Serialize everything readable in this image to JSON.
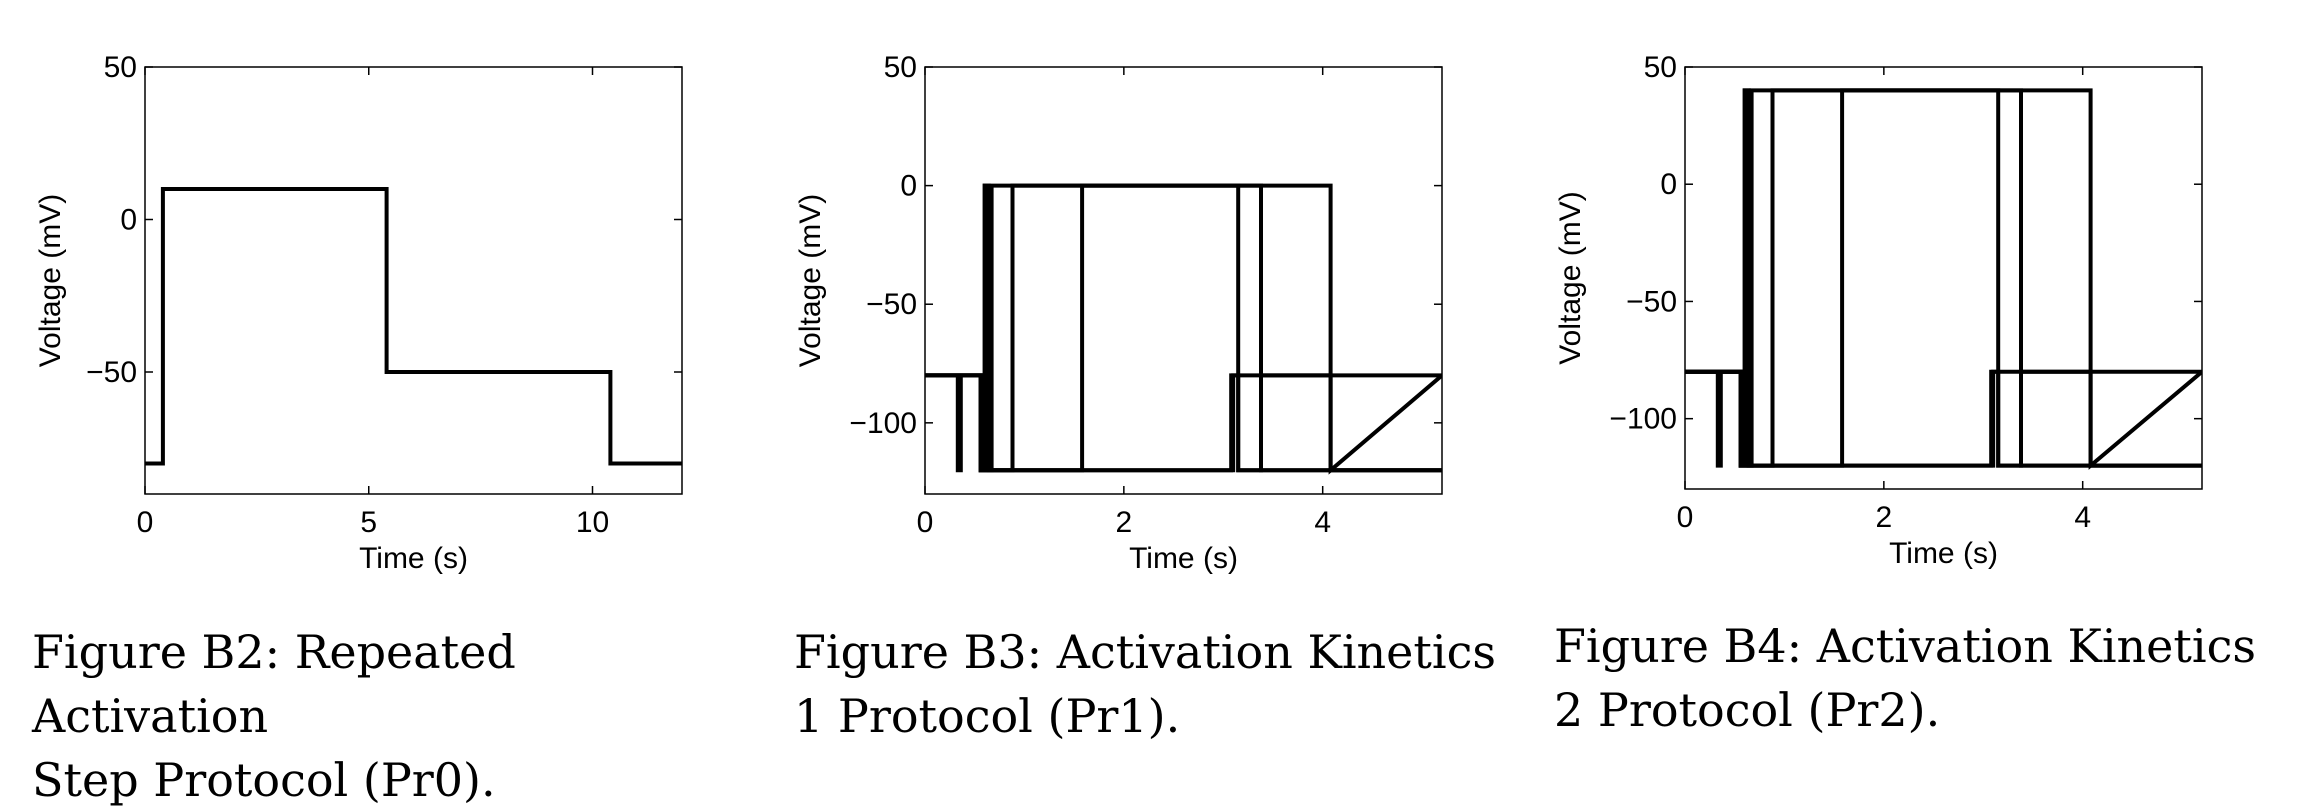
{
  "figures": [
    {
      "caption_line1": "Figure B2: Repeated Activation",
      "caption_line2": "Step Protocol (Pr0).",
      "chart_data": {
        "type": "line",
        "xlabel": "Time (s)",
        "ylabel": "Voltage (mV)",
        "xlim": [
          0,
          12
        ],
        "ylim": [
          -90,
          50
        ],
        "xticks": [
          0,
          5,
          10
        ],
        "yticks": [
          50,
          0,
          -50
        ],
        "series": [
          {
            "x": [
              0,
              0.4,
              0.4,
              5.4,
              5.4,
              10.4,
              10.4,
              12
            ],
            "y": [
              -80,
              -80,
              10,
              10,
              -50,
              -50,
              -80,
              -80
            ]
          }
        ]
      }
    },
    {
      "caption_line1": "Figure B3: Activation Kinetics",
      "caption_line2": "1 Protocol (Pr1).",
      "chart_data": {
        "type": "line",
        "xlabel": "Time (s)",
        "ylabel": "Voltage (mV)",
        "xlim": [
          0,
          5.2
        ],
        "ylim": [
          -130,
          50
        ],
        "xticks": [
          0,
          2,
          4
        ],
        "yticks": [
          50,
          0,
          -50,
          -100
        ],
        "series": [
          {
            "x": [
              0,
              0.33,
              0.33,
              0.36,
              0.36,
              0.56,
              0.56,
              0.6,
              0.6,
              0.64,
              0.64,
              3.08,
              3.08,
              5.2
            ],
            "y": [
              -80,
              -80,
              -120,
              -120,
              -80,
              -80,
              -120,
              -120,
              0,
              0,
              -120,
              -120,
              -80,
              -80
            ]
          },
          {
            "x": [
              0,
              0.56,
              0.56,
              0.67,
              0.67,
              3.15,
              3.15,
              5.2
            ],
            "y": [
              -80,
              -80,
              -120,
              -120,
              0,
              0,
              -120,
              -120
            ]
          },
          {
            "x": [
              0,
              0.56,
              0.56,
              0.88,
              0.88,
              3.38,
              3.38,
              5.2
            ],
            "y": [
              -80,
              -80,
              -120,
              -120,
              0,
              0,
              -120,
              -120
            ]
          },
          {
            "x": [
              0,
              0.56,
              0.56,
              1.58,
              1.58,
              4.08,
              4.08,
              5.2
            ],
            "y": [
              -80,
              -80,
              -120,
              -120,
              0,
              0,
              -120,
              -120
            ]
          },
          {
            "x": [
              0,
              0.6,
              0.6,
              0.64,
              0.64,
              3.1,
              3.1,
              3.15,
              3.15,
              3.38,
              3.38,
              4.08,
              4.08,
              5.2
            ],
            "y": [
              -80,
              -80,
              0,
              0,
              -120,
              -120,
              -80,
              -80,
              -120,
              -120,
              -80,
              -80,
              -120,
              -80
            ]
          }
        ]
      }
    },
    {
      "caption_line1": "Figure B4: Activation Kinetics",
      "caption_line2": "2 Protocol (Pr2).",
      "chart_data": {
        "type": "line",
        "xlabel": "Time (s)",
        "ylabel": "Voltage (mV)",
        "xlim": [
          0,
          5.2
        ],
        "ylim": [
          -130,
          50
        ],
        "xticks": [
          0,
          2,
          4
        ],
        "yticks": [
          50,
          0,
          -50,
          -100
        ],
        "series": [
          {
            "x": [
              0,
              0.33,
              0.33,
              0.36,
              0.36,
              0.56,
              0.56,
              0.6,
              0.6,
              0.64,
              0.64,
              3.08,
              3.08,
              5.2
            ],
            "y": [
              -80,
              -80,
              -120,
              -120,
              -80,
              -80,
              -120,
              -120,
              40,
              40,
              -120,
              -120,
              -80,
              -80
            ]
          },
          {
            "x": [
              0,
              0.56,
              0.56,
              0.67,
              0.67,
              3.15,
              3.15,
              5.2
            ],
            "y": [
              -80,
              -80,
              -120,
              -120,
              40,
              40,
              -120,
              -120
            ]
          },
          {
            "x": [
              0,
              0.56,
              0.56,
              0.88,
              0.88,
              3.38,
              3.38,
              5.2
            ],
            "y": [
              -80,
              -80,
              -120,
              -120,
              40,
              40,
              -120,
              -120
            ]
          },
          {
            "x": [
              0,
              0.56,
              0.56,
              1.58,
              1.58,
              4.08,
              4.08,
              5.2
            ],
            "y": [
              -80,
              -80,
              -120,
              -120,
              40,
              40,
              -120,
              -120
            ]
          },
          {
            "x": [
              0,
              0.6,
              0.6,
              0.64,
              0.64,
              3.1,
              3.1,
              3.15,
              3.15,
              3.38,
              3.38,
              4.08,
              4.08,
              5.2
            ],
            "y": [
              -80,
              -80,
              40,
              40,
              -120,
              -120,
              -80,
              -80,
              -120,
              -120,
              -80,
              -80,
              -120,
              -80
            ]
          }
        ]
      }
    }
  ]
}
